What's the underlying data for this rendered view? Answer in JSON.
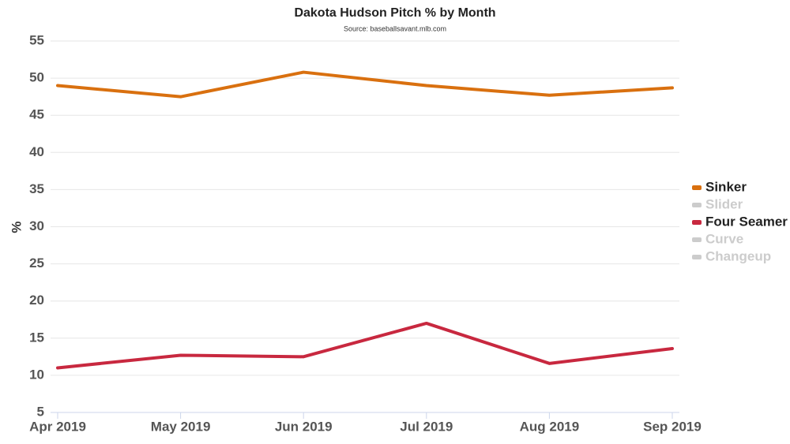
{
  "chart_data": {
    "type": "line",
    "title": "Dakota Hudson Pitch % by Month",
    "subtitle": "Source: baseballsavant.mlb.com",
    "y_label": "%",
    "categories": [
      "Apr 2019",
      "May 2019",
      "Jun 2019",
      "Jul 2019",
      "Aug 2019",
      "Sep 2019"
    ],
    "series": [
      {
        "name": "Sinker",
        "color": "#d9700f",
        "visible": true,
        "values": [
          49.0,
          47.5,
          50.8,
          49.0,
          47.7,
          48.7
        ]
      },
      {
        "name": "Slider",
        "color": "#cccccc",
        "visible": false,
        "values": [
          null,
          null,
          null,
          null,
          null,
          null
        ]
      },
      {
        "name": "Four Seamer",
        "color": "#c8283f",
        "visible": true,
        "values": [
          11.0,
          12.7,
          12.5,
          17.0,
          11.6,
          13.6
        ]
      },
      {
        "name": "Curve",
        "color": "#cccccc",
        "visible": false,
        "values": [
          null,
          null,
          null,
          null,
          null,
          null
        ]
      },
      {
        "name": "Changeup",
        "color": "#cccccc",
        "visible": false,
        "values": [
          null,
          null,
          null,
          null,
          null,
          null
        ]
      }
    ],
    "ylim": [
      5,
      55
    ],
    "yticks": [
      5,
      10,
      15,
      20,
      25,
      30,
      35,
      40,
      45,
      50,
      55
    ],
    "grid": true,
    "legend": "right"
  }
}
